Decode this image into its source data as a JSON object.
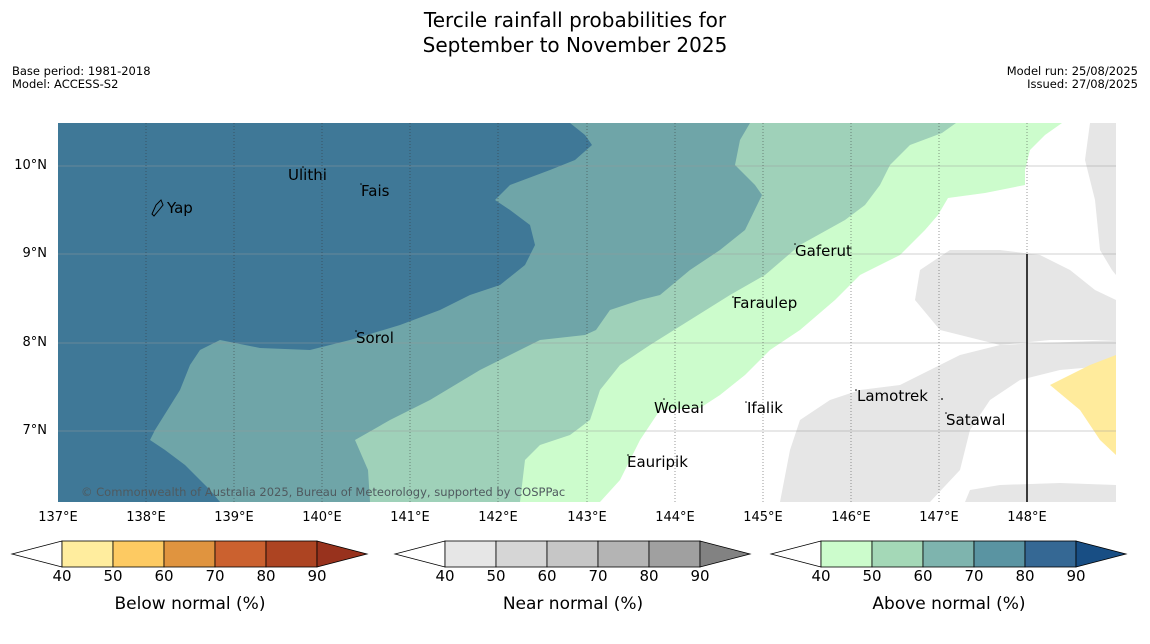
{
  "header": {
    "title_line1": "Tercile rainfall probabilities for",
    "title_line2": "September to November 2025",
    "base_period": "Base period: 1981-2018",
    "model": "Model: ACCESS-S2",
    "model_run": "Model run: 25/08/2025",
    "issued": "Issued: 27/08/2025"
  },
  "map": {
    "lat_labels": [
      "10°N",
      "9°N",
      "8°N",
      "7°N"
    ],
    "lon_labels": [
      "137°E",
      "138°E",
      "139°E",
      "140°E",
      "141°E",
      "142°E",
      "143°E",
      "144°E",
      "145°E",
      "146°E",
      "147°E",
      "148°E"
    ],
    "places": [
      "Ulithi",
      "Fais",
      "Yap",
      "Gaferut",
      "Faraulep",
      "Sorol",
      "Lamotrek",
      "Woleai",
      "Ifalik",
      "Satawal",
      "Eauripik"
    ],
    "copyright": "© Commonwealth of Australia 2025, Bureau of Meteorology, supported by COSPPac",
    "colors": {
      "above_90": "#3f7897",
      "above_70": "#6fa5a8",
      "above_60": "#9fd1b9",
      "above_50": "#ccfccc",
      "near_40": "#e6e6e6",
      "below_40": "#ffeb9c"
    }
  },
  "colorbars": [
    {
      "label": "Below normal (%)",
      "ticks": [
        "40",
        "50",
        "60",
        "70",
        "80",
        "90"
      ],
      "colors": [
        "#ffed9e",
        "#fdca62",
        "#e0943f",
        "#cb612f",
        "#ad4422",
        "#98321d"
      ]
    },
    {
      "label": "Near normal (%)",
      "ticks": [
        "40",
        "50",
        "60",
        "70",
        "80",
        "90"
      ],
      "colors": [
        "#e6e6e6",
        "#d6d6d6",
        "#c6c6c6",
        "#b4b4b4",
        "#a0a0a0",
        "#828282"
      ]
    },
    {
      "label": "Above normal (%)",
      "ticks": [
        "40",
        "50",
        "60",
        "70",
        "80",
        "90"
      ],
      "colors": [
        "#ccfccc",
        "#a4d8b7",
        "#7eb4ae",
        "#5a94a2",
        "#356894",
        "#184e84"
      ]
    }
  ]
}
